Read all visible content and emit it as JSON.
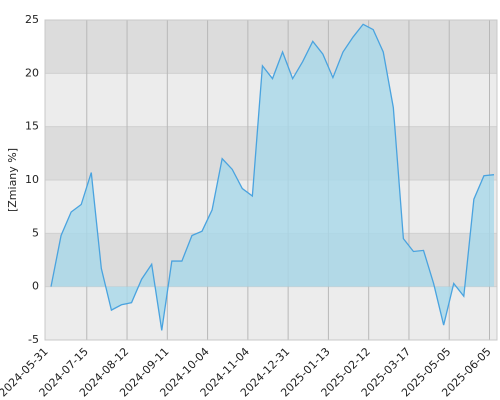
{
  "chart_data": {
    "type": "area",
    "y_label": "[Zmiany %]",
    "categories": [
      "2024-05-31",
      null,
      null,
      null,
      "2024-07-15",
      null,
      null,
      null,
      "2024-08-12",
      null,
      null,
      null,
      "2024-09-11",
      null,
      null,
      null,
      "2024-10-04",
      null,
      null,
      null,
      "2024-11-04",
      null,
      null,
      null,
      "2024-12-31",
      null,
      null,
      null,
      "2025-01-13",
      null,
      null,
      null,
      "2025-02-12",
      null,
      null,
      null,
      "2025-03-17",
      null,
      null,
      null,
      "2025-05-05",
      null,
      null,
      null,
      "2025-06-05"
    ],
    "series": [
      {
        "name": "Zmiany",
        "color": "#4aa3df",
        "values": [
          0,
          4.8,
          7,
          7.7,
          10.7,
          1.7,
          -2.2,
          -1.7,
          -1.5,
          0.7,
          2.1,
          -4.1,
          2.4,
          2.4,
          4.8,
          5.2,
          7.2,
          12,
          11,
          9.2,
          8.5,
          20.7,
          19.5,
          22,
          19.5,
          21.1,
          23,
          21.8,
          19.6,
          22,
          23.4,
          24.6,
          24.1,
          22,
          16.8,
          4.5,
          3.3,
          3.4,
          0.3,
          -3.6,
          0.3,
          -0.9,
          8.2,
          10.4,
          10.5
        ]
      }
    ],
    "ylim": [
      -5,
      25
    ],
    "yticks": [
      -5,
      0,
      5,
      10,
      15,
      20,
      25
    ],
    "grid": true
  }
}
